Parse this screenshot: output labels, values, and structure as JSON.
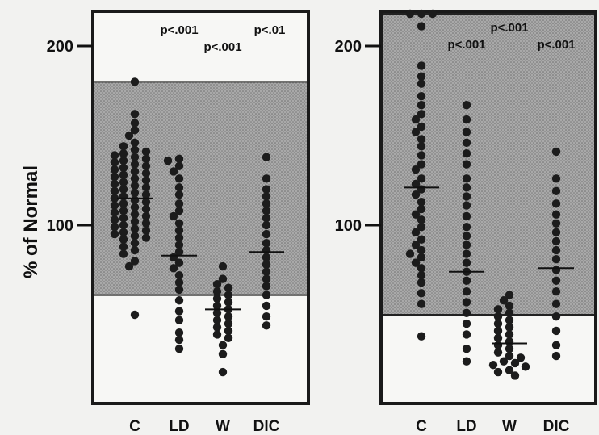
{
  "chart_data": {
    "type": "scatter",
    "ylabel": "% of Normal",
    "categories": [
      "C",
      "LD",
      "W",
      "DIC"
    ],
    "panels": [
      {
        "name": "",
        "ylim": [
          20,
          240
        ],
        "yticks": [
          100,
          200
        ],
        "normal_band": [
          61,
          180
        ],
        "annotations": [
          {
            "category": "LD",
            "text": "p<.001"
          },
          {
            "category": "W",
            "text": "p<.001"
          },
          {
            "category": "DIC",
            "text": "p<.01"
          }
        ],
        "means": [
          115,
          83,
          53,
          85
        ],
        "series": [
          {
            "category": "C",
            "values": [
              180,
              162,
              157,
              153,
              150,
              146,
              144,
              142,
              141,
              140,
              139,
              138,
              137,
              136,
              135,
              134,
              133,
              132,
              131,
              130,
              129,
              128,
              127,
              126,
              125,
              124,
              123,
              122,
              121,
              120,
              119,
              118,
              117,
              116,
              115,
              114,
              113,
              112,
              111,
              110,
              109,
              108,
              107,
              106,
              105,
              104,
              103,
              102,
              101,
              100,
              99,
              98,
              97,
              96,
              95,
              94,
              93,
              92,
              90,
              88,
              86,
              84,
              80,
              77,
              50
            ]
          },
          {
            "category": "LD",
            "values": [
              137,
              136,
              133,
              130,
              126,
              121,
              117,
              112,
              108,
              105,
              101,
              97,
              93,
              89,
              85,
              82,
              79,
              76,
              72,
              68,
              64,
              58,
              52,
              47,
              40,
              36,
              31
            ]
          },
          {
            "category": "W",
            "values": [
              77,
              70,
              67,
              65,
              63,
              61,
              59,
              57,
              55,
              53,
              51,
              49,
              47,
              45,
              43,
              41,
              39,
              37,
              33,
              28,
              18
            ]
          },
          {
            "category": "DIC",
            "values": [
              138,
              126,
              120,
              116,
              112,
              108,
              104,
              100,
              95,
              90,
              86,
              82,
              78,
              74,
              70,
              66,
              61,
              55,
              49,
              44
            ]
          }
        ]
      },
      {
        "name": "",
        "ylim": [
          0,
          240
        ],
        "yticks": [
          100,
          200
        ],
        "normal_band": [
          50,
          240
        ],
        "annotations": [
          {
            "category": "LD",
            "text": "p<.001"
          },
          {
            "category": "W",
            "text": "p<.001"
          },
          {
            "category": "DIC",
            "text": "p<.001"
          }
        ],
        "means": [
          121,
          74,
          34,
          76
        ],
        "series": [
          {
            "category": "C",
            "values": [
              240,
              237,
              234,
              211,
              189,
              183,
              179,
              172,
              167,
              162,
              159,
              155,
              152,
              148,
              144,
              139,
              134,
              131,
              126,
              123,
              120,
              117,
              113,
              109,
              106,
              103,
              99,
              96,
              92,
              89,
              86,
              84,
              82,
              79,
              76,
              72,
              68,
              62,
              56,
              38
            ]
          },
          {
            "category": "LD",
            "values": [
              167,
              159,
              152,
              146,
              140,
              134,
              126,
              121,
              116,
              111,
              105,
              99,
              94,
              89,
              84,
              79,
              74,
              69,
              63,
              57,
              51,
              45,
              39,
              31,
              24
            ]
          },
          {
            "category": "W",
            "values": [
              61,
              58,
              55,
              53,
              51,
              49,
              47,
              45,
              43,
              41,
              39,
              37,
              35,
              33,
              31,
              29,
              27,
              26,
              24,
              23,
              22,
              21,
              19,
              18,
              16
            ]
          },
          {
            "category": "DIC",
            "values": [
              141,
              126,
              119,
              112,
              106,
              101,
              96,
              91,
              86,
              81,
              75,
              69,
              63,
              56,
              49,
              41,
              33,
              27
            ]
          }
        ]
      }
    ]
  }
}
